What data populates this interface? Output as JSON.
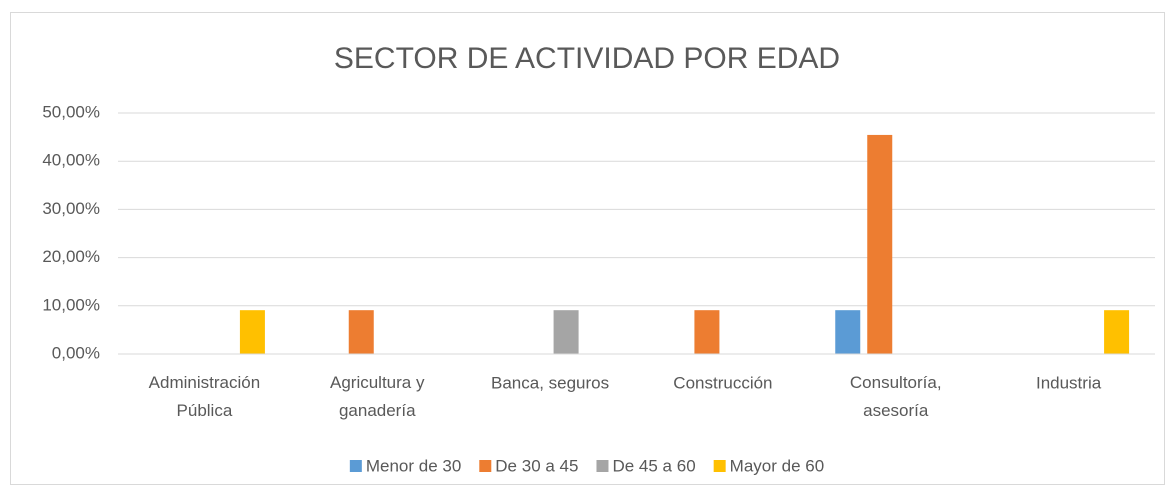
{
  "chart_data": {
    "type": "bar",
    "title": "SECTOR DE ACTIVIDAD POR EDAD",
    "categories": [
      "Administración Pública",
      "Agricultura y ganadería",
      "Banca, seguros",
      "Construcción",
      "Consultoría, asesoría",
      "Industria"
    ],
    "series": [
      {
        "name": "Menor de 30",
        "color": "#5b9bd5",
        "values": [
          0,
          0,
          0,
          0,
          9.09,
          0
        ]
      },
      {
        "name": "De 30 a 45",
        "color": "#ed7d31",
        "values": [
          0,
          9.09,
          0,
          9.09,
          45.45,
          0
        ]
      },
      {
        "name": "De 45 a 60",
        "color": "#a5a5a5",
        "values": [
          0,
          0,
          9.09,
          0,
          0,
          0
        ]
      },
      {
        "name": "Mayor de 60",
        "color": "#ffc000",
        "values": [
          9.09,
          0,
          0,
          0,
          0,
          9.09
        ]
      }
    ],
    "ylim": [
      0,
      50
    ],
    "yticks": [
      {
        "value": 0,
        "label": "0,00%"
      },
      {
        "value": 10,
        "label": "10,00%"
      },
      {
        "value": 20,
        "label": "20,00%"
      },
      {
        "value": 30,
        "label": "30,00%"
      },
      {
        "value": 40,
        "label": "40,00%"
      },
      {
        "value": 50,
        "label": "50,00%"
      }
    ],
    "grid": true,
    "legend": "bottom"
  }
}
